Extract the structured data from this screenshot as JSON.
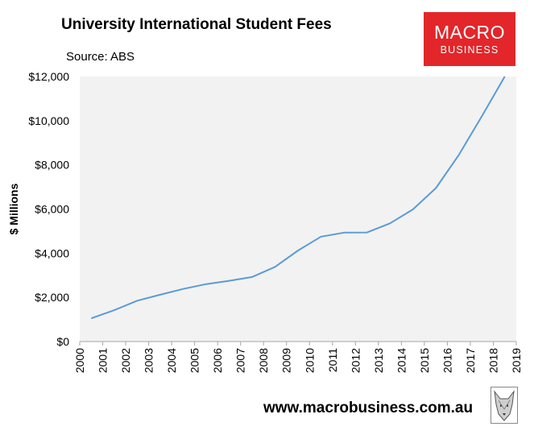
{
  "title": "University International Student Fees",
  "source": "Source: ABS",
  "logo": {
    "top": "MACRO",
    "bottom": "BUSINESS"
  },
  "footer_url": "www.macrobusiness.com.au",
  "colors": {
    "line": "#5b9bd5",
    "plot_bg": "#f2f2f2",
    "logo": "#e3262a"
  },
  "icons": {
    "footer_logo": "wolf-icon"
  },
  "chart_data": {
    "type": "line",
    "title": "University International Student Fees",
    "ylabel": "$ Millions",
    "xlabel": "",
    "x_ticks": [
      "2000",
      "2001",
      "2002",
      "2003",
      "2004",
      "2005",
      "2006",
      "2007",
      "2008",
      "2009",
      "2010",
      "2011",
      "2012",
      "2013",
      "2014",
      "2015",
      "2016",
      "2017",
      "2018",
      "2019"
    ],
    "y_ticks": [
      0,
      2000,
      4000,
      6000,
      8000,
      10000,
      12000
    ],
    "y_tick_labels": [
      "$0",
      "$2,000",
      "$4,000",
      "$6,000",
      "$8,000",
      "$10,000",
      "$12,000"
    ],
    "ylim": [
      0,
      12000
    ],
    "xlim": [
      2000,
      2019
    ],
    "grid": false,
    "series": [
      {
        "x": [
          2000.5,
          2001.5,
          2002.5,
          2003.5,
          2004.5,
          2005.5,
          2006.5,
          2007.5,
          2008.5,
          2009.5,
          2010.5,
          2011.5,
          2012.5,
          2013.5,
          2014.5,
          2015.5,
          2016.5,
          2017.5,
          2018.5
        ],
        "values": [
          1050,
          1420,
          1850,
          2120,
          2380,
          2600,
          2750,
          2920,
          3380,
          4120,
          4750,
          4930,
          4940,
          5350,
          5980,
          6950,
          8450,
          10200,
          12000
        ]
      }
    ]
  }
}
